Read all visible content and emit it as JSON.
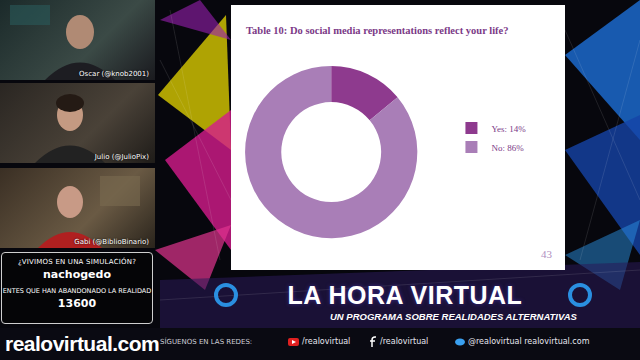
{
  "chart_data": {
    "type": "pie",
    "title": "Table 10: Do social media representations reflect your life?",
    "categories": [
      "Yes: 14%",
      "No: 86%"
    ],
    "values": [
      14,
      86
    ],
    "colors": [
      "#8e3a8e",
      "#a97eb7"
    ],
    "legend": "right",
    "data_labels": false,
    "annotations": [
      "43"
    ]
  },
  "panels": [
    {
      "label": "Oscar (@knob2001)"
    },
    {
      "label": "Julio (@JulioPix)"
    },
    {
      "label": "Gabi (@BiblioBinario)"
    }
  ],
  "info_box": {
    "question": "¿VIVIMOS EN UNA SIMULACIÓN?",
    "name": "nachogedo",
    "counter_label": "ENTES QUE HAN ABANDONADO LA REALIDAD",
    "counter": 13600
  },
  "brand": {
    "site": "realovirtual.com",
    "show_title": "LA HORA VIRTUAL",
    "show_subtitle": "UN PROGRAMA SOBRE REALIDADES ALTERNATIVAS"
  },
  "social": {
    "label": "SÍGUENOS EN LAS REDES:",
    "youtube": "/realovirtual",
    "facebook": "/realovirtual",
    "twitter": "@realovirtual",
    "web": "realovirtual.com"
  }
}
